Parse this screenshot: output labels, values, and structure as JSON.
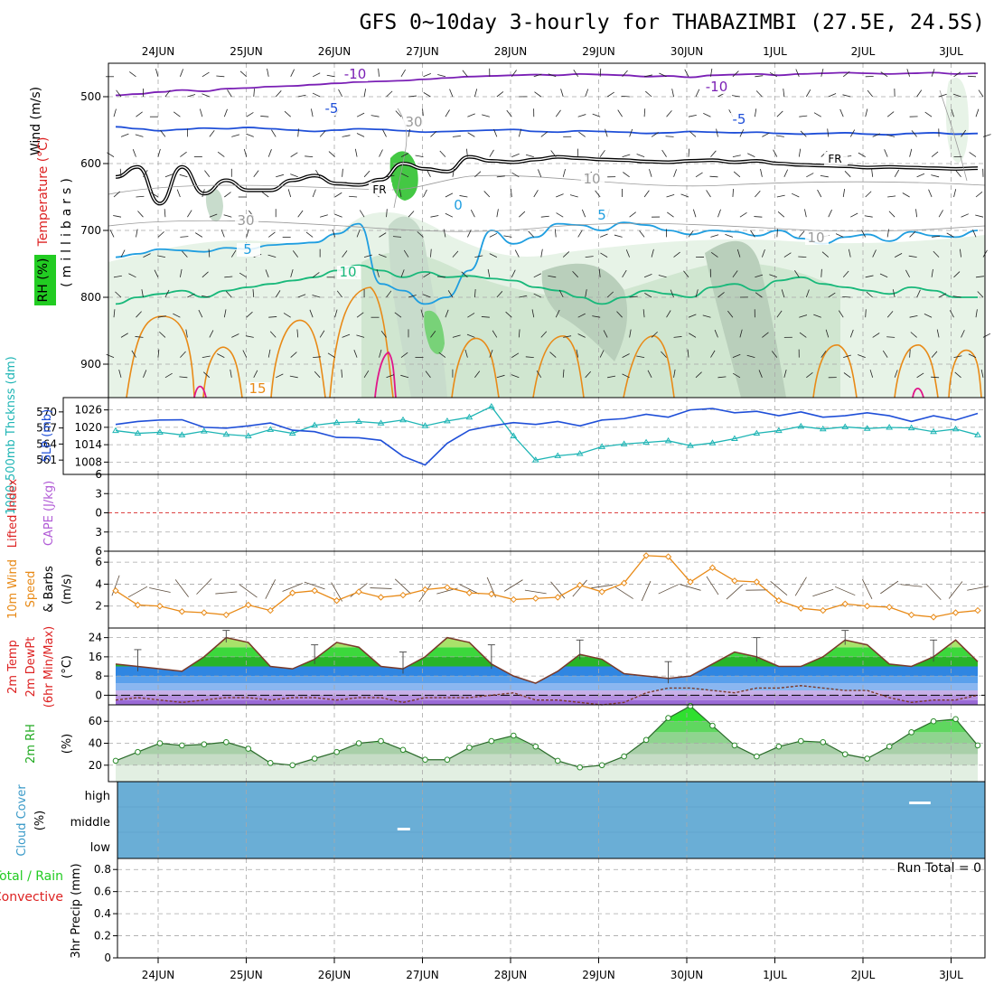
{
  "title": "GFS 0~10day 3-hourly for THABAZIMBI (27.5E, 24.5S)",
  "date_labels": [
    "24JUN",
    "25JUN",
    "26JUN",
    "27JUN",
    "28JUN",
    "29JUN",
    "30JUN",
    "1JUL",
    "2JUL",
    "3JUL"
  ],
  "colors": {
    "blue": "#1f4fd8",
    "cyan": "#1fb5b5",
    "orange": "#e88a17",
    "green": "#22cc22",
    "purple": "#7a1fb5",
    "sky": "#6aaed6",
    "red": "#dd2222"
  },
  "panels": {
    "upper": {
      "labels": {
        "wind": "Wind (m/s)",
        "temperature": "Temperature (°C)",
        "rh": "RH (%)",
        "millibars": "(millibars)"
      },
      "contour_labels": [
        "-10",
        "-10",
        "-5",
        "-5",
        "5",
        "5",
        "10",
        "15",
        "0",
        "FR",
        "FR",
        "30",
        "30",
        "10",
        "10"
      ]
    },
    "slp": {
      "labels": {
        "thickness": "1000-500mb Thcknss (dm)",
        "slp": "SLP (mb)"
      }
    },
    "lifted": {
      "labels": {
        "lifted": "Lifted Index",
        "cape": "CAPE (J/kg)"
      }
    },
    "wind10": {
      "labels": {
        "a": "10m Wind",
        "b": "Speed",
        "c": "& Barbs",
        "unit": "(m/s)"
      }
    },
    "temp": {
      "labels": {
        "a": "2m Temp",
        "b": "2m DewPt",
        "c": "(6hr Min/Max)",
        "unit": "(°C)"
      }
    },
    "rh": {
      "labels": {
        "a": "2m RH",
        "unit": "(%)"
      }
    },
    "cloud": {
      "labels": {
        "a": "Cloud Cover",
        "unit": "(%)",
        "high": "high",
        "middle": "middle",
        "low": "low"
      }
    },
    "precip": {
      "labels": {
        "a": "Total / Rain",
        "b": "Convective",
        "c": "3hr Precip (mm)"
      },
      "run_total": "Run Total = 0"
    }
  },
  "chart_data": [
    {
      "type": "area",
      "panel": "upper-air cross section",
      "ylabel": "(millibars)",
      "yticks": [
        500,
        600,
        700,
        800,
        900
      ],
      "y_inverted": true,
      "ylim": [
        450,
        950
      ],
      "contours": [
        {
          "name": "-10",
          "values": [
            498,
            496,
            493,
            490,
            492,
            488,
            487,
            485,
            484,
            482,
            480,
            478,
            477,
            476,
            474,
            472,
            470,
            469,
            468,
            467,
            468,
            466,
            467,
            468,
            470,
            469,
            471,
            468,
            467,
            466,
            468,
            466,
            465,
            464,
            465,
            466,
            465,
            464,
            466,
            465
          ]
        },
        {
          "name": "-5",
          "values": [
            545,
            548,
            551,
            549,
            547,
            548,
            546,
            548,
            550,
            552,
            550,
            548,
            549,
            551,
            553,
            552,
            551,
            550,
            549,
            552,
            553,
            551,
            552,
            553,
            555,
            554,
            552,
            553,
            554,
            553,
            555,
            556,
            555,
            554,
            556,
            557,
            555,
            554,
            556,
            555
          ]
        },
        {
          "name": "FR",
          "values": [
            620,
            605,
            660,
            605,
            645,
            625,
            640,
            640,
            625,
            618,
            630,
            632,
            624,
            600,
            608,
            612,
            590,
            596,
            598,
            594,
            590,
            592,
            594,
            595,
            597,
            598,
            596,
            595,
            598,
            596,
            600,
            602,
            603,
            604,
            606,
            605,
            606,
            607,
            608,
            607
          ]
        },
        {
          "name": "5",
          "values": [
            740,
            735,
            728,
            730,
            732,
            726,
            728,
            722,
            720,
            718,
            705,
            690,
            780,
            790,
            810,
            800,
            760,
            700,
            720,
            710,
            690,
            692,
            700,
            688,
            692,
            700,
            706,
            700,
            702,
            708,
            700,
            712,
            720,
            710,
            706,
            716,
            702,
            708,
            710,
            700
          ]
        },
        {
          "name": "10",
          "values": [
            810,
            800,
            795,
            790,
            800,
            790,
            785,
            780,
            775,
            770,
            760,
            752,
            760,
            770,
            762,
            770,
            768,
            772,
            775,
            785,
            790,
            800,
            810,
            800,
            790,
            795,
            800,
            785,
            780,
            790,
            775,
            770,
            780,
            785,
            790,
            795,
            785,
            790,
            800,
            800
          ]
        }
      ],
      "barb_rows": [
        470,
        500,
        530,
        560,
        590,
        620,
        650,
        680,
        710,
        740,
        770,
        800,
        830,
        860,
        890,
        920
      ]
    },
    {
      "type": "line",
      "panel": "thickness / slp",
      "xlabel": "",
      "series": [
        {
          "name": "1000-500mb Thcknss (dm)",
          "axis": "left",
          "yticks": [
            561,
            564,
            567,
            570
          ],
          "ylim": [
            559,
            572
          ],
          "values": [
            566.5,
            566.0,
            566.2,
            565.7,
            566.4,
            565.8,
            565.5,
            566.7,
            566.0,
            567.5,
            568.0,
            568.2,
            567.9,
            568.5,
            567.4,
            568.3,
            569.0,
            571.0,
            565.5,
            561.0,
            561.8,
            562.2,
            563.5,
            564.0,
            564.3,
            564.6,
            563.7,
            564.2,
            565.0,
            566.0,
            566.5,
            567.3,
            566.8,
            567.2,
            566.9,
            567.1,
            567.0,
            566.3,
            566.8,
            565.7
          ]
        },
        {
          "name": "SLP (mb)",
          "axis": "right",
          "yticks": [
            1008,
            1014,
            1020,
            1026
          ],
          "ylim": [
            1005,
            1029
          ],
          "values": [
            1021.0,
            1022.0,
            1022.5,
            1022.6,
            1020.0,
            1019.7,
            1020.5,
            1021.5,
            1019.0,
            1018.5,
            1016.5,
            1016.4,
            1015.5,
            1010.0,
            1007.0,
            1014.5,
            1019.0,
            1020.5,
            1021.6,
            1021.0,
            1022.0,
            1020.5,
            1022.5,
            1023.0,
            1024.5,
            1023.5,
            1026.0,
            1026.5,
            1025.0,
            1025.5,
            1024.0,
            1025.3,
            1023.5,
            1024.0,
            1025.0,
            1024.0,
            1022.0,
            1024.0,
            1022.5,
            1024.8
          ]
        }
      ]
    },
    {
      "type": "line",
      "panel": "lifted index / cape",
      "yticks": [
        6,
        3,
        0,
        3,
        6
      ],
      "ylim": [
        -6,
        6
      ],
      "series": [
        {
          "name": "Lifted Index",
          "values": []
        }
      ],
      "reference_line": 0
    },
    {
      "type": "line",
      "panel": "10m wind",
      "yticks": [
        2,
        4,
        6
      ],
      "ylim": [
        0,
        7
      ],
      "series": [
        {
          "name": "10m Wind Speed",
          "values": [
            3.4,
            2.1,
            2.0,
            1.5,
            1.4,
            1.2,
            2.1,
            1.6,
            3.2,
            3.4,
            2.5,
            3.3,
            2.8,
            3.0,
            3.5,
            3.7,
            3.2,
            3.1,
            2.6,
            2.7,
            2.8,
            3.9,
            3.3,
            4.1,
            6.6,
            6.5,
            4.2,
            5.5,
            4.3,
            4.2,
            2.5,
            1.8,
            1.6,
            2.2,
            2.0,
            1.9,
            1.2,
            1.0,
            1.4,
            1.6
          ]
        }
      ]
    },
    {
      "type": "area",
      "panel": "2m temperature / dewpoint",
      "yticks": [
        0,
        8,
        16,
        24
      ],
      "ylim": [
        -4,
        28
      ],
      "series": [
        {
          "name": "2m Temp",
          "values": [
            13,
            12,
            11,
            10,
            16,
            24,
            22,
            12,
            11,
            15,
            22,
            20,
            12,
            11,
            16,
            24,
            22,
            13,
            8,
            5,
            10,
            17,
            15,
            9,
            8,
            7,
            8,
            13,
            18,
            16,
            12,
            12,
            16,
            23,
            21,
            13,
            12,
            16,
            23,
            14
          ]
        },
        {
          "name": "2m DewPt",
          "values": [
            -2,
            -1,
            -2,
            -3,
            -2,
            -1,
            -1,
            -2,
            -1,
            -1,
            -2,
            -1,
            -1,
            -3,
            -1,
            -1,
            -1,
            0,
            1,
            -2,
            -2,
            -3,
            -4,
            -3,
            1,
            3,
            3,
            2,
            1,
            3,
            3,
            4,
            3,
            2,
            2,
            -1,
            -3,
            -2,
            -2,
            0
          ]
        }
      ],
      "minmax_bars": true
    },
    {
      "type": "area",
      "panel": "2m rh",
      "yticks": [
        20,
        40,
        60
      ],
      "ylim": [
        5,
        75
      ],
      "series": [
        {
          "name": "2m RH",
          "values": [
            24,
            32,
            40,
            38,
            39,
            41,
            35,
            22,
            20,
            26,
            32,
            40,
            42,
            34,
            25,
            25,
            36,
            42,
            47,
            37,
            24,
            18,
            20,
            28,
            43,
            63,
            74,
            56,
            38,
            28,
            37,
            42,
            41,
            30,
            26,
            37,
            50,
            60,
            62,
            38
          ]
        }
      ]
    },
    {
      "type": "heatmap",
      "panel": "cloud cover",
      "categories": [
        "high",
        "middle",
        "low"
      ],
      "clear_patches": [
        {
          "layer": "middle",
          "x": 0.33
        },
        {
          "layer": "high",
          "x": 0.92
        },
        {
          "layer": "high",
          "x": 0.93
        }
      ]
    },
    {
      "type": "bar",
      "panel": "3hr precip",
      "yticks": [
        0,
        0.2,
        0.4,
        0.6,
        0.8
      ],
      "ylim": [
        0,
        0.9
      ],
      "values": []
    }
  ]
}
